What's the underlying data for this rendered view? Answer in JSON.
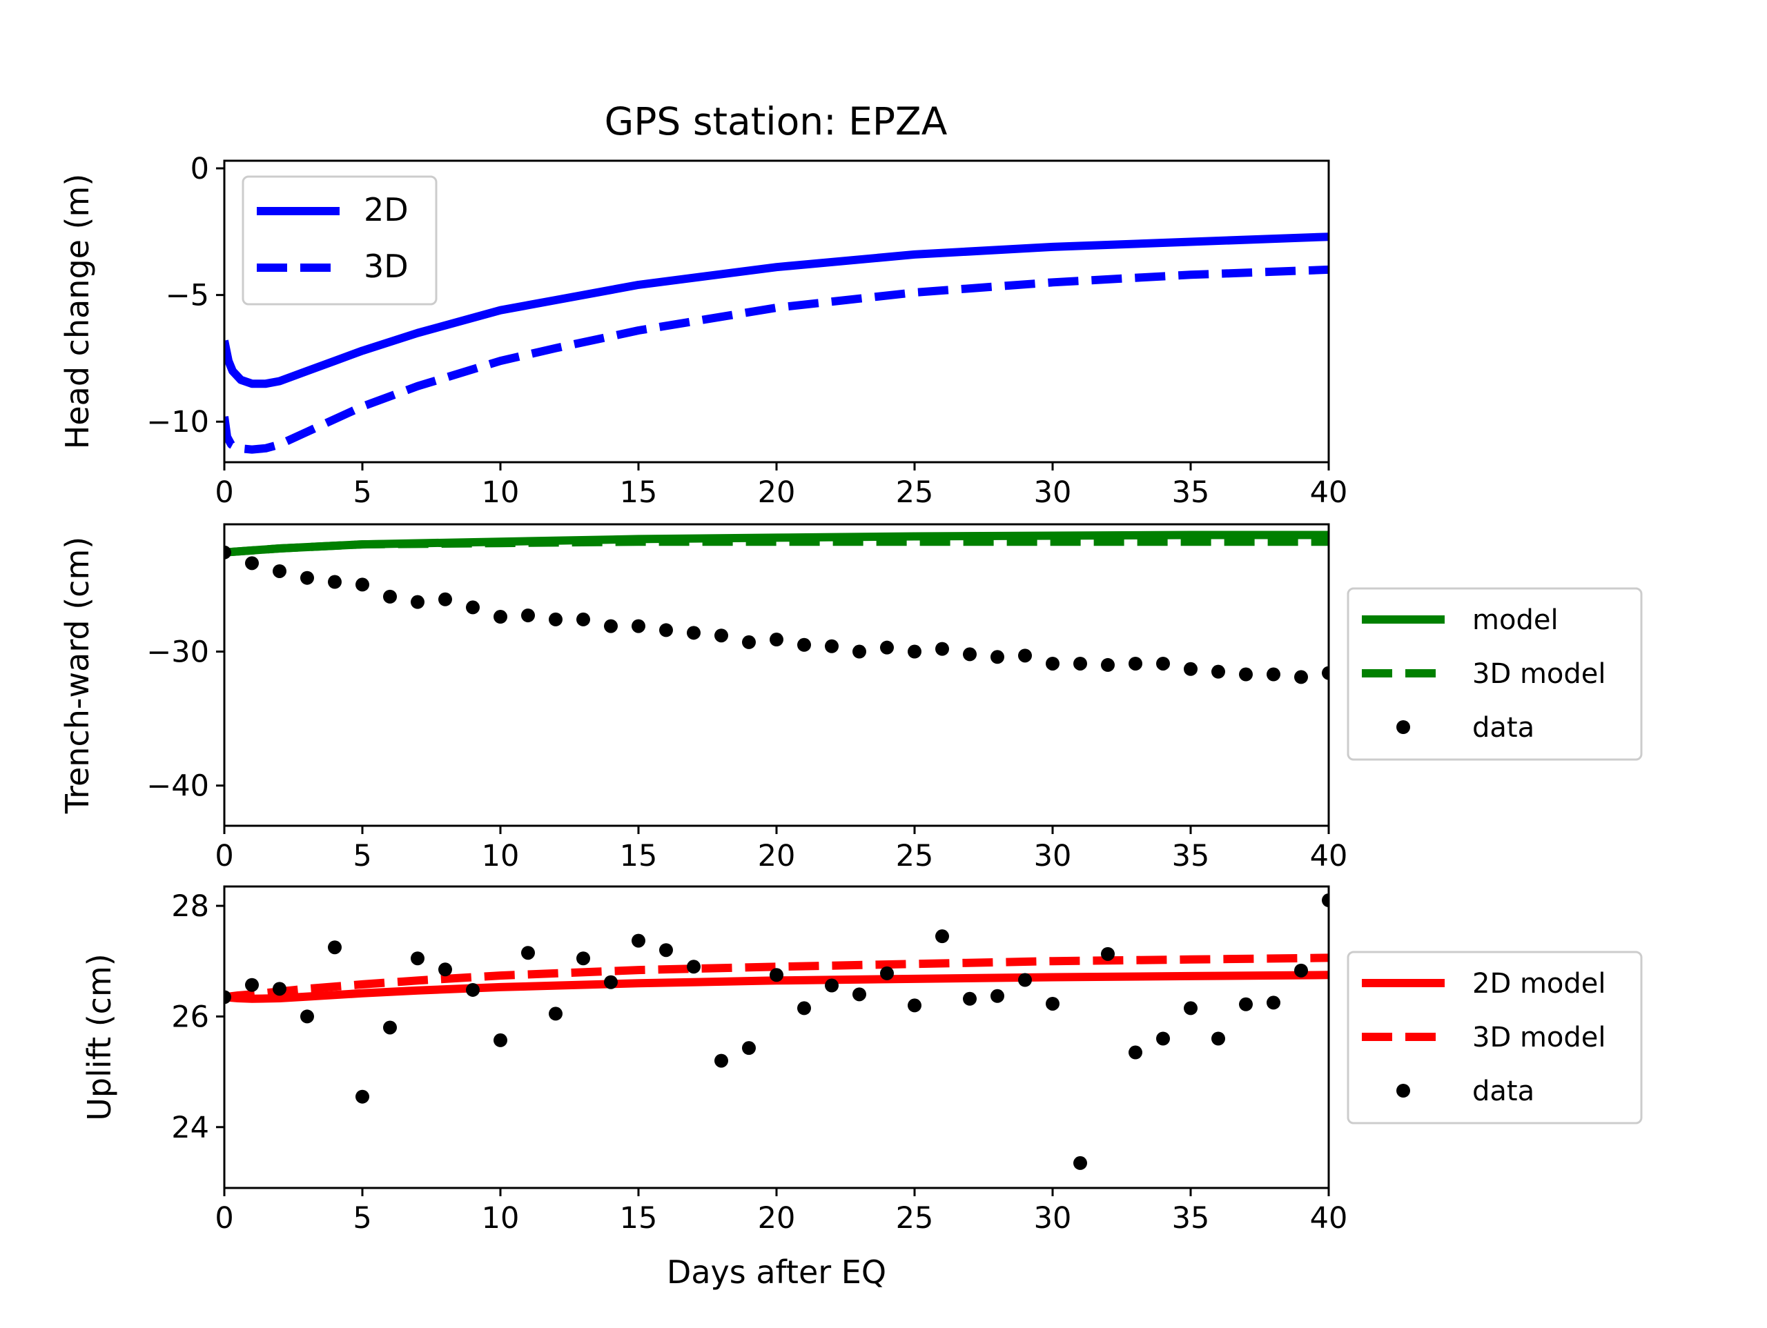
{
  "figure": {
    "title": "GPS station: EPZA"
  },
  "chart_data": [
    {
      "type": "line",
      "title": "GPS station: EPZA",
      "xlabel": "",
      "ylabel": "Head change (m)",
      "xlim": [
        0,
        40
      ],
      "ylim": [
        -11.6,
        0.3
      ],
      "xticks": [
        0,
        5,
        10,
        15,
        20,
        25,
        30,
        35,
        40
      ],
      "yticks": [
        0,
        -5,
        -10
      ],
      "ytick_labels": [
        "0",
        "−5",
        "−10"
      ],
      "legend_loc": "upper-left",
      "series": [
        {
          "name": "2D",
          "style": "solid",
          "color": "#0000ff",
          "x": [
            0,
            0.15,
            0.3,
            0.6,
            1,
            1.5,
            2,
            3,
            4,
            5,
            7,
            10,
            12,
            15,
            20,
            25,
            30,
            35,
            40
          ],
          "y": [
            -6.8,
            -7.6,
            -8.0,
            -8.35,
            -8.5,
            -8.5,
            -8.4,
            -8.0,
            -7.6,
            -7.2,
            -6.5,
            -5.6,
            -5.2,
            -4.6,
            -3.9,
            -3.4,
            -3.1,
            -2.9,
            -2.7
          ]
        },
        {
          "name": "3D",
          "style": "dashed",
          "color": "#0000ff",
          "x": [
            0,
            0.1,
            0.25,
            0.5,
            1,
            1.5,
            2,
            3,
            4,
            5,
            7,
            10,
            12,
            15,
            20,
            25,
            30,
            35,
            40
          ],
          "y": [
            -9.8,
            -10.6,
            -10.9,
            -11.05,
            -11.1,
            -11.05,
            -10.9,
            -10.4,
            -9.9,
            -9.4,
            -8.6,
            -7.6,
            -7.1,
            -6.4,
            -5.5,
            -4.9,
            -4.5,
            -4.2,
            -4.0
          ]
        }
      ]
    },
    {
      "type": "line",
      "xlabel": "",
      "ylabel": "Trench-ward (cm)",
      "xlim": [
        0,
        40
      ],
      "ylim": [
        -43,
        -20.5
      ],
      "xticks": [
        0,
        5,
        10,
        15,
        20,
        25,
        30,
        35,
        40
      ],
      "yticks": [
        -30,
        -40
      ],
      "ytick_labels": [
        "−30",
        "−40"
      ],
      "legend_loc": "outside-right",
      "series": [
        {
          "name": "model",
          "style": "solid",
          "color": "#008000",
          "x": [
            0,
            2,
            5,
            10,
            15,
            20,
            25,
            30,
            35,
            40
          ],
          "y": [
            -22.6,
            -22.3,
            -22.0,
            -21.8,
            -21.6,
            -21.5,
            -21.4,
            -21.35,
            -21.3,
            -21.3
          ]
        },
        {
          "name": "3D model",
          "style": "dashed",
          "color": "#008000",
          "x": [
            0,
            2,
            5,
            10,
            15,
            20,
            25,
            30,
            35,
            40
          ],
          "y": [
            -22.6,
            -22.3,
            -22.0,
            -21.9,
            -21.8,
            -21.8,
            -21.8,
            -21.8,
            -21.8,
            -21.8
          ]
        },
        {
          "name": "data",
          "style": "points",
          "color": "#000000",
          "x": [
            0,
            1,
            2,
            3,
            4,
            5,
            6,
            7,
            8,
            9,
            10,
            11,
            12,
            13,
            14,
            15,
            16,
            17,
            18,
            19,
            20,
            21,
            22,
            23,
            24,
            25,
            26,
            27,
            28,
            29,
            30,
            31,
            32,
            33,
            34,
            35,
            36,
            37,
            38,
            39,
            40
          ],
          "y": [
            -22.6,
            -23.4,
            -24.0,
            -24.5,
            -24.8,
            -25.0,
            -25.9,
            -26.3,
            -26.1,
            -26.7,
            -27.4,
            -27.3,
            -27.6,
            -27.6,
            -28.1,
            -28.1,
            -28.4,
            -28.6,
            -28.8,
            -29.3,
            -29.1,
            -29.5,
            -29.6,
            -30.0,
            -29.7,
            -30.0,
            -29.8,
            -30.2,
            -30.4,
            -30.3,
            -30.9,
            -30.9,
            -31.0,
            -30.9,
            -30.9,
            -31.3,
            -31.5,
            -31.7,
            -31.7,
            -31.9,
            -31.6
          ]
        }
      ]
    },
    {
      "type": "line",
      "xlabel": "Days after EQ",
      "ylabel": "Uplift (cm)",
      "xlim": [
        0,
        40
      ],
      "ylim": [
        22.9,
        28.35
      ],
      "xticks": [
        0,
        5,
        10,
        15,
        20,
        25,
        30,
        35,
        40
      ],
      "yticks": [
        28,
        26,
        24
      ],
      "ytick_labels": [
        "28",
        "26",
        "24"
      ],
      "legend_loc": "outside-right",
      "series": [
        {
          "name": "2D model",
          "style": "solid",
          "color": "#ff0000",
          "x": [
            0,
            0.5,
            1,
            2,
            3,
            5,
            7,
            10,
            15,
            20,
            25,
            30,
            35,
            40
          ],
          "y": [
            26.35,
            26.33,
            26.32,
            26.33,
            26.36,
            26.42,
            26.47,
            26.53,
            26.6,
            26.65,
            26.68,
            26.71,
            26.73,
            26.75
          ]
        },
        {
          "name": "3D model",
          "style": "dashed",
          "color": "#ff0000",
          "x": [
            0,
            0.5,
            1,
            2,
            3,
            5,
            7,
            10,
            15,
            20,
            25,
            30,
            35,
            40
          ],
          "y": [
            26.35,
            26.38,
            26.4,
            26.45,
            26.5,
            26.58,
            26.65,
            26.74,
            26.84,
            26.9,
            26.95,
            27.0,
            27.03,
            27.06
          ]
        },
        {
          "name": "data",
          "style": "points",
          "color": "#000000",
          "x": [
            0,
            1,
            2,
            3,
            4,
            5,
            6,
            7,
            8,
            9,
            10,
            11,
            12,
            13,
            14,
            15,
            16,
            17,
            18,
            19,
            20,
            21,
            22,
            23,
            24,
            25,
            26,
            27,
            28,
            29,
            30,
            31,
            32,
            33,
            34,
            35,
            36,
            37,
            38,
            39,
            40
          ],
          "y": [
            26.35,
            26.57,
            26.5,
            26.0,
            27.25,
            24.55,
            25.8,
            27.05,
            26.85,
            26.48,
            25.57,
            27.15,
            26.05,
            27.05,
            26.62,
            27.37,
            27.2,
            26.9,
            25.2,
            25.43,
            26.75,
            26.15,
            26.56,
            26.4,
            26.78,
            26.2,
            27.45,
            26.32,
            26.37,
            26.66,
            26.23,
            23.35,
            27.13,
            25.35,
            25.6,
            26.15,
            25.6,
            26.22,
            26.25,
            26.83,
            28.1
          ]
        }
      ]
    }
  ]
}
